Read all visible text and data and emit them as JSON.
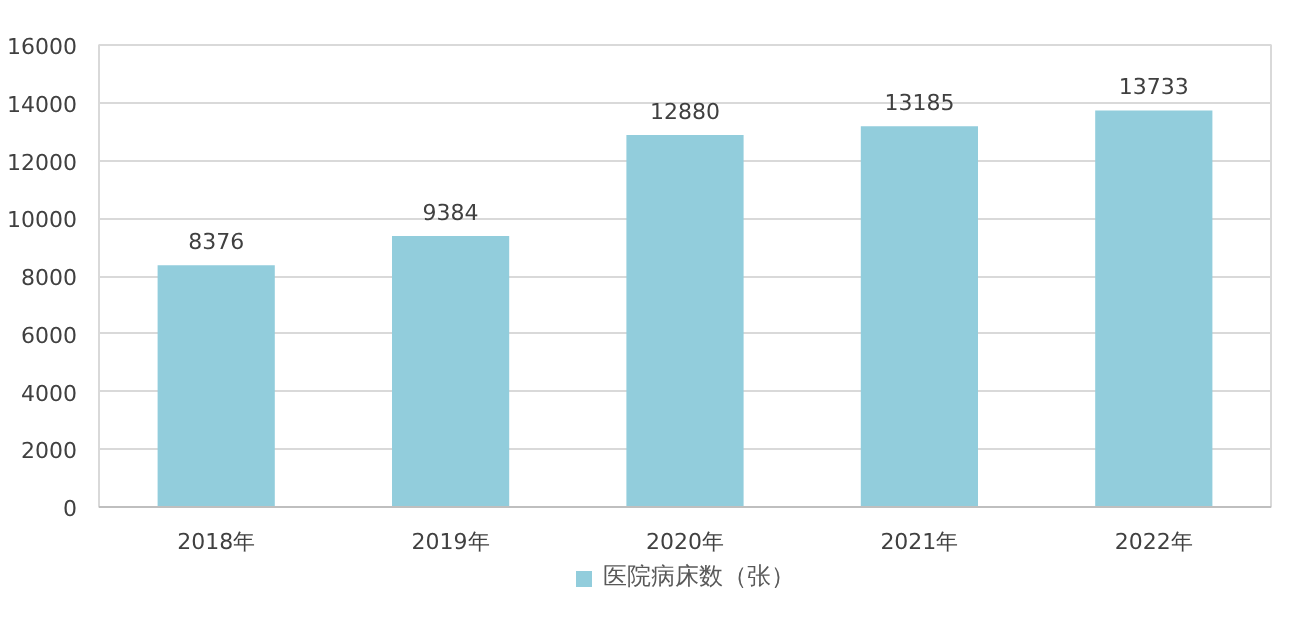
{
  "chart_data": {
    "type": "bar",
    "categories": [
      "2018年",
      "2019年",
      "2020年",
      "2021年",
      "2022年"
    ],
    "series": [
      {
        "name": "医院病床数（张）",
        "color": "#92cddc",
        "values": [
          8376,
          9384,
          12880,
          13185,
          13733
        ]
      }
    ],
    "ylim": [
      0,
      16000
    ],
    "yticks": [
      0,
      2000,
      4000,
      6000,
      8000,
      10000,
      12000,
      14000,
      16000
    ],
    "grid": "y",
    "legend": "bottom",
    "data_labels": true
  }
}
